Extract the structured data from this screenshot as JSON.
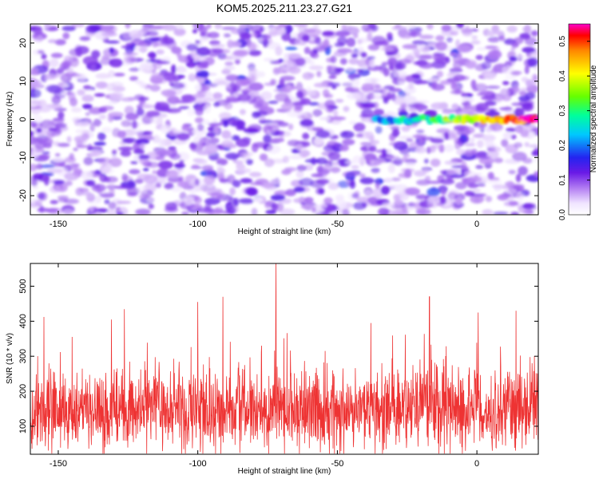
{
  "title": "KOM5.2025.211.23.27.G21",
  "chart_data": [
    {
      "type": "heatmap",
      "xlabel": "Height of straight line (km)",
      "ylabel": "Frequency (Hz)",
      "xlim": [
        -160,
        22
      ],
      "ylim": [
        -25,
        25
      ],
      "xticks": [
        -150,
        -100,
        -50,
        0
      ],
      "yticks": [
        -20,
        -10,
        0,
        10,
        20
      ],
      "colorbar": {
        "label": "Normalized spectral amplitude",
        "range": [
          0.0,
          0.55
        ],
        "ticks": [
          0.0,
          0.1,
          0.2,
          0.3,
          0.4,
          0.5
        ],
        "tick_labels": [
          "0.0",
          "0.1",
          "0.2",
          "0.3",
          "0.4",
          "0.5"
        ]
      },
      "signal_trace": {
        "x_start": -36,
        "x_end": 22,
        "frequency": 0,
        "peak_amplitude": 0.5
      },
      "noise_level": 0.08
    },
    {
      "type": "line",
      "xlabel": "Height of straight line (km)",
      "ylabel": "SNR (10 * v/v)",
      "xlim": [
        -160,
        22
      ],
      "ylim": [
        20,
        565
      ],
      "xticks": [
        -150,
        -100,
        -50,
        0
      ],
      "yticks": [
        100,
        200,
        300,
        400,
        500
      ],
      "series": [
        {
          "color": "#ee3333",
          "baseline_mean": 140,
          "peaks": [
            {
              "x": -72,
              "y": 565
            },
            {
              "x": -91,
              "y": 470
            },
            {
              "x": -100,
              "y": 455
            },
            {
              "x": -17,
              "y": 470
            },
            {
              "x": -131,
              "y": 405
            },
            {
              "x": 22,
              "y": 410
            },
            {
              "x": -38,
              "y": 395
            },
            {
              "x": 14,
              "y": 430
            }
          ]
        }
      ]
    }
  ]
}
